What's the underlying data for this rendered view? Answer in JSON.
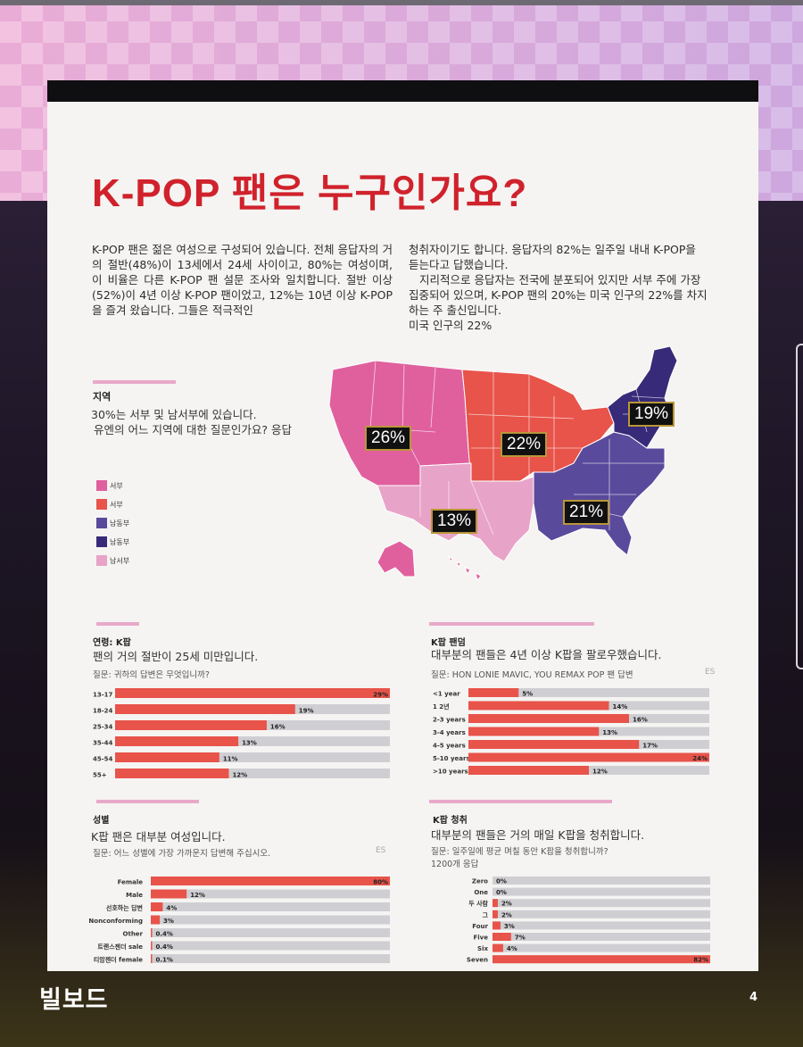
{
  "title": "K-POP 팬은 누구인가요?",
  "intro": {
    "left": "K-POP 팬은 젊은 여성으로 구성되어 있습니다. 전체 응답자의 거의 절반(48%)이 13세에서 24세 사이이고, 80%는 여성이며, 이 비율은 다른 K-POP 팬 설문 조사와 일치합니다. 절반 이상(52%)이 4년 이상 K-POP 팬이었고, 12%는 10년 이상 K-POP을 즐겨 왔습니다. 그들은 적극적인",
    "right_1": "청취자이기도 합니다. 응답자의 82%는 일주일 내내 K-POP을 듣는다고 답했습니다.",
    "right_2": "지리적으로 응답자는 전국에 분포되어 있지만 서부 주에 가장 집중되어 있으며, K-POP 팬의 20%는 미국 인구의 22%를 차지하는 주 출신입니다.",
    "right_3": "미국 인구의 22%"
  },
  "region": {
    "title": "지역",
    "subtitle_1": "30%는 서부 및 남서부에 있습니다.",
    "subtitle_2": "유엔의 어느 지역에 대한 질문인가요? 응답",
    "legend": [
      {
        "label": "서부",
        "color": "#e0609e"
      },
      {
        "label": "서부",
        "color": "#e8534a"
      },
      {
        "label": "남동부",
        "color": "#5a4a9c"
      },
      {
        "label": "남동부",
        "color": "#372a78"
      },
      {
        "label": "남서부",
        "color": "#e8a3c8"
      }
    ],
    "map_labels": [
      "26%",
      "22%",
      "19%",
      "13%",
      "21%"
    ],
    "colors": {
      "west": "#e0609e",
      "midwest": "#e8534a",
      "southeast": "#5a4a9c",
      "northeast": "#372a78",
      "southwest": "#e8a3c8"
    }
  },
  "charts": {
    "age": {
      "title": "연령: K팝",
      "subtitle": "팬의 거의 절반이 25세 미만입니다.",
      "question": "질문: 귀하의 답변은 무엇입니까?"
    },
    "fandom": {
      "title": "K팝 팬덤",
      "subtitle": "대부분의 팬들은 4년 이상 K팝을 팔로우했습니다.",
      "question": "질문: HON LONIE MAVIC, YOU REMAX POP 팬 답변",
      "trailing": "ES"
    },
    "gender": {
      "title": "성별",
      "subtitle": "K팝 팬은 대부분 여성입니다.",
      "question": "질문: 어느 성별에 가장 가까운지 답변해 주십시오.",
      "trailing": "ES"
    },
    "listening": {
      "title": "K팝 청취",
      "subtitle": "대부분의 팬들은 거의 매일 K팝을 청취합니다.",
      "question": "질문: 일주일에 평균 며칠 동안 K팝을 청취합니까?",
      "question_2": "1200개 응답"
    }
  },
  "chart_data": [
    {
      "type": "bar",
      "orientation": "horizontal",
      "categories": [
        "13-17",
        "18-24",
        "25-34",
        "35-44",
        "45-54",
        "55+"
      ],
      "values": [
        29,
        19,
        16,
        13,
        11,
        12
      ],
      "labels": [
        "29%",
        "19%",
        "16%",
        "13%",
        "11%",
        "12%"
      ],
      "xlim": [
        0,
        29
      ],
      "colors": {
        "bar": "#e8534a",
        "track": "#cfcfd3"
      }
    },
    {
      "type": "bar",
      "orientation": "horizontal",
      "categories": [
        "<1 year",
        "1 2년",
        "2-3 years",
        "3-4 years",
        "4-5 years",
        "5-10 years",
        ">10 years"
      ],
      "values": [
        5,
        14,
        16,
        13,
        17,
        24,
        12
      ],
      "labels": [
        "5%",
        "14%",
        "16%",
        "13%",
        "17%",
        "24%",
        "12%"
      ],
      "xlim": [
        0,
        24
      ],
      "colors": {
        "bar": "#e8534a",
        "track": "#cfcfd3"
      }
    },
    {
      "type": "bar",
      "orientation": "horizontal",
      "categories": [
        "Female",
        "Male",
        "선호하는 답변",
        "Nonconforming",
        "Other",
        "트랜스젠더 sale",
        "티암젠더 female"
      ],
      "values": [
        80,
        12,
        4,
        3,
        0.4,
        0.4,
        0.1
      ],
      "labels": [
        "80%",
        "12%",
        "4%",
        "3%",
        "0.4%",
        "0.4%",
        "0.1%"
      ],
      "xlim": [
        0,
        80
      ],
      "colors": {
        "bar": "#e8534a",
        "track": "#cfcfd3"
      }
    },
    {
      "type": "bar",
      "orientation": "horizontal",
      "categories": [
        "Zero",
        "One",
        "두 사람",
        "그",
        "Four",
        "Five",
        "Six",
        "Seven"
      ],
      "values": [
        0,
        0,
        2,
        2,
        3,
        7,
        4,
        82
      ],
      "labels": [
        "0%",
        "0%",
        "2%",
        "2%",
        "3%",
        "7%",
        "4%",
        "82%"
      ],
      "xlim": [
        0,
        82
      ],
      "colors": {
        "bar": "#e8534a",
        "track": "#cfcfd3"
      }
    }
  ],
  "footer": {
    "logo": "빌보드",
    "page": "4"
  }
}
